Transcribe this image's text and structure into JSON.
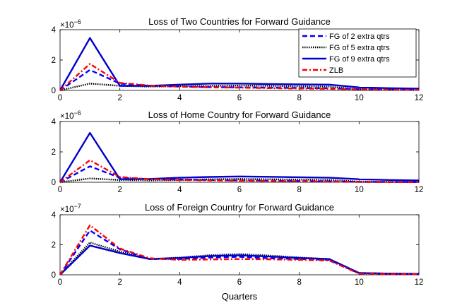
{
  "xlabel": "Quarters",
  "colors": {
    "fg2": "#0000ff",
    "fg5": "#000000",
    "fg9": "#0000cc",
    "zlb": "#ff0000"
  },
  "legend": [
    {
      "id": "fg2",
      "label": "FG of 2 extra qtrs"
    },
    {
      "id": "fg5",
      "label": "FG of 5 extra qtrs"
    },
    {
      "id": "fg9",
      "label": "FG of 9 extra qtrs"
    },
    {
      "id": "zlb",
      "label": "ZLB"
    }
  ],
  "chart_data": [
    {
      "type": "line",
      "title": "Loss of Two Countries for Forward Guidance",
      "exponent_label": "×10",
      "exponent": "−6",
      "xlim": [
        0,
        12
      ],
      "ylim": [
        0,
        4
      ],
      "xticks": [
        "0",
        "2",
        "4",
        "6",
        "8",
        "10",
        "12"
      ],
      "yticks": [
        "0",
        "2",
        "4"
      ],
      "x": [
        0,
        1,
        2,
        3,
        4,
        5,
        6,
        7,
        8,
        9,
        10,
        11,
        12
      ],
      "series": [
        {
          "name": "FG of 2 extra qtrs",
          "values": [
            0,
            1.35,
            0.45,
            0.3,
            0.25,
            0.22,
            0.2,
            0.18,
            0.16,
            0.14,
            0.08,
            0.05,
            0.04
          ]
        },
        {
          "name": "FG of 5 extra qtrs",
          "values": [
            0,
            0.45,
            0.3,
            0.25,
            0.28,
            0.3,
            0.32,
            0.3,
            0.27,
            0.25,
            0.08,
            0.05,
            0.04
          ]
        },
        {
          "name": "FG of 9 extra qtrs",
          "values": [
            0,
            3.45,
            0.3,
            0.3,
            0.38,
            0.45,
            0.45,
            0.42,
            0.4,
            0.38,
            0.2,
            0.15,
            0.12
          ]
        },
        {
          "name": "ZLB",
          "values": [
            0,
            1.75,
            0.5,
            0.32,
            0.25,
            0.2,
            0.18,
            0.15,
            0.12,
            0.1,
            0.06,
            0.04,
            0.03
          ]
        }
      ]
    },
    {
      "type": "line",
      "title": "Loss of Home Country for Forward Guidance",
      "exponent_label": "×10",
      "exponent": "−6",
      "xlim": [
        0,
        12
      ],
      "ylim": [
        0,
        4
      ],
      "xticks": [
        "0",
        "2",
        "4",
        "6",
        "8",
        "10",
        "12"
      ],
      "yticks": [
        "0",
        "2",
        "4"
      ],
      "x": [
        0,
        1,
        2,
        3,
        4,
        5,
        6,
        7,
        8,
        9,
        10,
        11,
        12
      ],
      "series": [
        {
          "name": "FG of 2 extra qtrs",
          "values": [
            0,
            1.05,
            0.3,
            0.2,
            0.18,
            0.15,
            0.12,
            0.1,
            0.08,
            0.06,
            0.03,
            0.02,
            0.01
          ]
        },
        {
          "name": "FG of 5 extra qtrs",
          "values": [
            0,
            0.25,
            0.15,
            0.12,
            0.15,
            0.2,
            0.22,
            0.2,
            0.18,
            0.15,
            0.05,
            0.03,
            0.02
          ]
        },
        {
          "name": "FG of 9 extra qtrs",
          "values": [
            0,
            3.25,
            0.2,
            0.22,
            0.3,
            0.35,
            0.38,
            0.36,
            0.33,
            0.3,
            0.2,
            0.15,
            0.12
          ]
        },
        {
          "name": "ZLB",
          "values": [
            0,
            1.45,
            0.35,
            0.2,
            0.15,
            0.12,
            0.1,
            0.08,
            0.06,
            0.04,
            0.02,
            0.01,
            0.01
          ]
        }
      ]
    },
    {
      "type": "line",
      "title": "Loss of Foreign Country for Forward Guidance",
      "exponent_label": "×10",
      "exponent": "−7",
      "xlim": [
        0,
        12
      ],
      "ylim": [
        0,
        4
      ],
      "xticks": [
        "0",
        "2",
        "4",
        "6",
        "8",
        "10",
        "12"
      ],
      "yticks": [
        "0",
        "2",
        "4"
      ],
      "x": [
        0,
        1,
        2,
        3,
        4,
        5,
        6,
        7,
        8,
        9,
        10,
        11,
        12
      ],
      "series": [
        {
          "name": "FG of 2 extra qtrs",
          "values": [
            0,
            2.95,
            1.7,
            1.05,
            1.05,
            1.15,
            1.2,
            1.1,
            1.05,
            1.0,
            0.1,
            0.06,
            0.05
          ]
        },
        {
          "name": "FG of 5 extra qtrs",
          "values": [
            0,
            2.15,
            1.55,
            1.05,
            1.15,
            1.3,
            1.38,
            1.28,
            1.15,
            1.05,
            0.12,
            0.08,
            0.06
          ]
        },
        {
          "name": "FG of 9 extra qtrs",
          "values": [
            0,
            1.95,
            1.45,
            1.05,
            1.12,
            1.25,
            1.3,
            1.22,
            1.12,
            1.05,
            0.12,
            0.08,
            0.06
          ]
        },
        {
          "name": "ZLB",
          "values": [
            0,
            3.3,
            1.75,
            1.1,
            1.0,
            1.02,
            1.05,
            1.03,
            1.0,
            0.95,
            0.08,
            0.05,
            0.04
          ]
        }
      ]
    }
  ]
}
